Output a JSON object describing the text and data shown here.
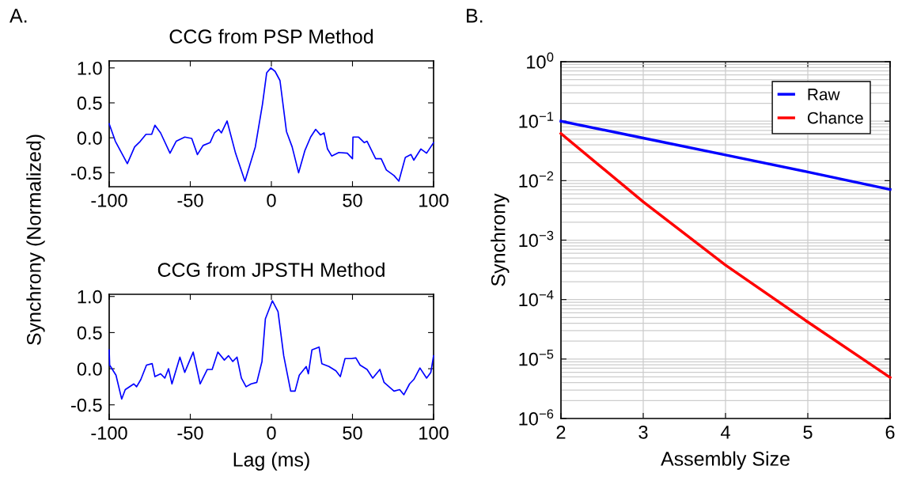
{
  "chart_data": [
    {
      "type": "line",
      "title": "CCG from PSP Method",
      "ylabel": "Synchrony (Normalized)",
      "annotations": [
        "A."
      ],
      "xlim": [
        -100,
        100
      ],
      "xticks": [
        -100,
        -50,
        0,
        50,
        100
      ],
      "ylim": [
        -0.7,
        1.1
      ],
      "yticks": [
        {
          "value": -0.5,
          "label": "-0.5"
        },
        {
          "value": 0,
          "label": "0.0"
        },
        {
          "value": 0.5,
          "label": "0.5"
        },
        {
          "value": 1,
          "label": "1.0"
        }
      ],
      "grid": false,
      "legend": false,
      "series": [
        {
          "color": "#0000ff",
          "x": [
            -100,
            -96.2,
            -88.8,
            -84.3,
            -80.8,
            -77.3,
            -73.8,
            -71.8,
            -68.3,
            -62.5,
            -58.7,
            -53.4,
            -49.1,
            -45.6,
            -42.1,
            -37.8,
            -35.1,
            -32.5,
            -30.8,
            -27.3,
            -22.1,
            -16.3,
            -9.9,
            -5.5,
            -2.9,
            -0.3,
            2.3,
            5.3,
            9.3,
            12.8,
            16.8,
            20.7,
            24.2,
            27.3,
            30.3,
            32.5,
            34.6,
            37.2,
            41.6,
            46.8,
            50.0,
            50.3,
            53.8,
            57.3,
            59.0,
            64.3,
            67.7,
            70.9,
            75.6,
            78.6,
            82.6,
            86.1,
            87.8,
            92.2,
            95.7,
            100
          ],
          "values": [
            0.2,
            -0.05,
            -0.37,
            -0.13,
            -0.05,
            0.05,
            0.05,
            0.18,
            0.07,
            -0.22,
            -0.05,
            0.01,
            -0.01,
            -0.24,
            -0.11,
            -0.07,
            0.07,
            0.12,
            0.07,
            0.24,
            -0.22,
            -0.62,
            -0.13,
            0.48,
            0.93,
            1.0,
            0.95,
            0.82,
            0.09,
            -0.13,
            -0.5,
            -0.18,
            0.01,
            0.12,
            0.04,
            0.07,
            -0.16,
            -0.26,
            -0.21,
            -0.22,
            -0.3,
            0.01,
            0.01,
            -0.07,
            -0.05,
            -0.3,
            -0.3,
            -0.46,
            -0.54,
            -0.62,
            -0.28,
            -0.24,
            -0.32,
            -0.16,
            -0.22,
            -0.07
          ]
        }
      ]
    },
    {
      "type": "line",
      "title": "CCG from JPSTH Method",
      "xlabel": "Lag (ms)",
      "xlim": [
        -100,
        100
      ],
      "xticks": [
        -100,
        -50,
        0,
        50,
        100
      ],
      "ylim": [
        -0.7,
        1.03
      ],
      "yticks": [
        {
          "value": -0.5,
          "label": "-0.5"
        },
        {
          "value": 0,
          "label": "0.0"
        },
        {
          "value": 0.5,
          "label": "0.5"
        },
        {
          "value": 1,
          "label": "1.0"
        }
      ],
      "grid": false,
      "legend": false,
      "series": [
        {
          "color": "#0000ff",
          "x": [
            -100,
            -99.7,
            -95.8,
            -92.3,
            -90.1,
            -84.8,
            -83.1,
            -80.5,
            -77.0,
            -73.5,
            -71.8,
            -68.3,
            -65.7,
            -63.4,
            -61.3,
            -56.4,
            -53.4,
            -48.2,
            -43.9,
            -39.5,
            -36.5,
            -33.0,
            -29.0,
            -26.4,
            -23.8,
            -21.2,
            -18.5,
            -15.6,
            -12.5,
            -9.0,
            -5.8,
            -3.7,
            0.6,
            4.1,
            7.6,
            11.9,
            14.6,
            17.2,
            21.5,
            22.8,
            25.0,
            29.4,
            31.1,
            35.5,
            39.8,
            42.5,
            45.4,
            49.4,
            52.1,
            54.7,
            59.0,
            62.5,
            66.9,
            69.5,
            75.6,
            79.1,
            81.7,
            85.2,
            87.8,
            91.6,
            95.7,
            98.3,
            100
          ],
          "values": [
            0.26,
            0.05,
            -0.09,
            -0.42,
            -0.29,
            -0.21,
            -0.25,
            -0.15,
            0.05,
            0.07,
            -0.11,
            -0.07,
            -0.13,
            0.0,
            -0.21,
            0.16,
            -0.05,
            0.23,
            -0.21,
            -0.01,
            -0.01,
            0.23,
            0.12,
            0.18,
            0.1,
            0.16,
            -0.13,
            -0.25,
            -0.21,
            -0.19,
            0.1,
            0.69,
            0.94,
            0.79,
            0.18,
            -0.31,
            -0.31,
            -0.09,
            0.03,
            -0.07,
            0.26,
            0.3,
            0.07,
            0.03,
            -0.03,
            -0.11,
            0.14,
            0.14,
            0.15,
            0.05,
            -0.01,
            -0.13,
            -0.01,
            -0.19,
            -0.31,
            -0.29,
            -0.36,
            -0.21,
            -0.15,
            0.01,
            -0.13,
            -0.05,
            0.18
          ]
        }
      ]
    },
    {
      "type": "line",
      "xlabel": "Assembly Size",
      "ylabel": "Synchrony",
      "annotations": [
        "B."
      ],
      "log": "y",
      "xlim": [
        2,
        6
      ],
      "xticks": [
        2,
        3,
        4,
        5,
        6
      ],
      "ylim": [
        1e-06,
        1
      ],
      "yticks": [
        {
          "value": 1,
          "label": "10$^{0}$"
        },
        {
          "value": 0.1,
          "label": "10$^{−1}$"
        },
        {
          "value": 0.01,
          "label": "10$^{−2}$"
        },
        {
          "value": 0.001,
          "label": "10$^{−3}$"
        },
        {
          "value": 0.0001,
          "label": "10$^{−4}$"
        },
        {
          "value": 1e-05,
          "label": "10$^{−5}$"
        },
        {
          "value": 1e-06,
          "label": "10$^{−6}$"
        }
      ],
      "grid": true,
      "legend": "top right",
      "series": [
        {
          "name": "Raw",
          "color": "#0000ff",
          "x": [
            2,
            3,
            4,
            5,
            6
          ],
          "values": [
            0.1,
            0.052,
            0.027,
            0.014,
            0.0071
          ]
        },
        {
          "name": "Chance",
          "color": "#ff0000",
          "x": [
            2,
            3,
            4,
            5,
            6
          ],
          "values": [
            0.062,
            0.0044,
            0.00038,
            4.2e-05,
            4.9e-06
          ]
        }
      ]
    }
  ]
}
